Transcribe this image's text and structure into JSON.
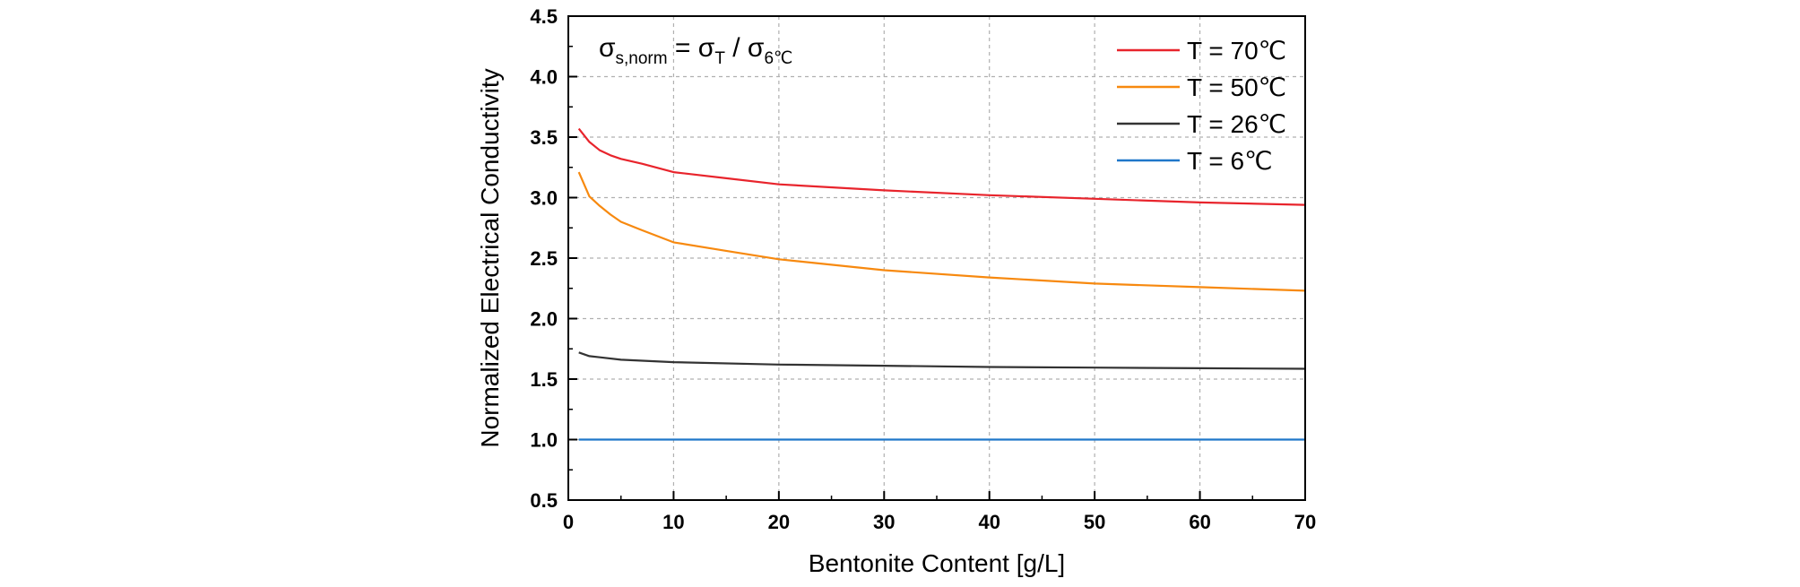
{
  "chart_data": {
    "type": "line",
    "xlabel": "Bentonite Content [g/L]",
    "ylabel": "Normalized Electrical Conductivity",
    "xlim": [
      0,
      70
    ],
    "ylim": [
      0.5,
      4.5
    ],
    "xticks": [
      "0",
      "10",
      "20",
      "30",
      "40",
      "50",
      "60",
      "70"
    ],
    "yticks": [
      "0.5",
      "1.0",
      "1.5",
      "2.0",
      "2.5",
      "3.0",
      "3.5",
      "4.0",
      "4.5"
    ],
    "grid": true,
    "legend_position": "top-right",
    "annotation": {
      "sigma": "σ",
      "sub1": "s,norm",
      "eq": " = σ",
      "sub2": "T",
      "slash": " / σ",
      "sub3": "6℃"
    },
    "series": [
      {
        "name": "T = 70℃",
        "color": "#e8242c",
        "x": [
          1,
          2,
          3,
          4,
          5,
          7,
          10,
          15,
          20,
          30,
          40,
          50,
          60,
          70
        ],
        "y": [
          3.57,
          3.46,
          3.39,
          3.35,
          3.32,
          3.28,
          3.21,
          3.16,
          3.11,
          3.06,
          3.02,
          2.99,
          2.96,
          2.94
        ]
      },
      {
        "name": "T = 50℃",
        "color": "#f7890f",
        "x": [
          1,
          2,
          3,
          4,
          5,
          7,
          10,
          15,
          20,
          30,
          40,
          50,
          60,
          70
        ],
        "y": [
          3.21,
          3.01,
          2.93,
          2.86,
          2.8,
          2.73,
          2.63,
          2.56,
          2.49,
          2.4,
          2.34,
          2.29,
          2.26,
          2.23
        ]
      },
      {
        "name": "T = 26℃",
        "color": "#333333",
        "x": [
          1,
          2,
          3,
          5,
          10,
          20,
          30,
          40,
          50,
          60,
          70
        ],
        "y": [
          1.72,
          1.69,
          1.68,
          1.66,
          1.64,
          1.62,
          1.61,
          1.6,
          1.595,
          1.59,
          1.585
        ]
      },
      {
        "name": "T = 6℃",
        "color": "#1f77c9",
        "x": [
          1,
          70
        ],
        "y": [
          1.0,
          1.0
        ]
      }
    ]
  }
}
